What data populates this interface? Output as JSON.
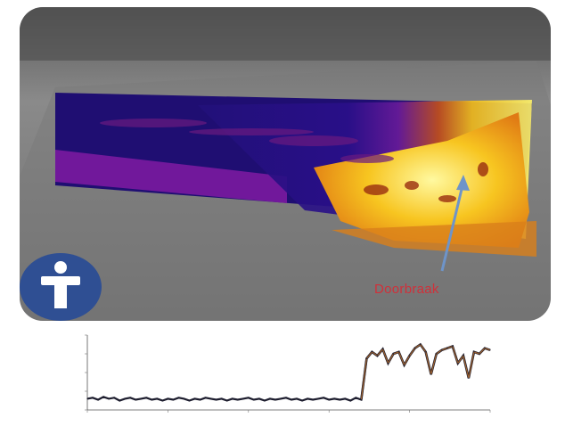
{
  "photo": {
    "annotation": "Doorbraak",
    "annotation_color": "#d0303a",
    "arrow_color": "#6e94c9",
    "info_badge_color": "#2f4f93",
    "info_icon": "info-person-icon",
    "palette": {
      "background_gray": "#8e8e8e",
      "cold": "#1e0f7c",
      "warm_purple": "#8a1fa6",
      "hot": "#f9c51b",
      "hottest": "#fffa64"
    }
  },
  "chart_data": {
    "type": "line",
    "title": "",
    "xlabel": "",
    "ylabel": "",
    "line_color": "#1d1d2e",
    "highlight_color": "#b56f2f",
    "x": [
      0,
      20,
      40,
      60,
      80,
      100,
      120,
      140,
      160,
      180,
      200,
      220,
      240,
      260,
      280,
      300,
      320,
      340,
      360,
      380,
      400,
      420,
      440,
      460,
      480,
      500,
      520,
      540,
      560,
      580,
      600,
      620,
      640,
      660,
      680,
      700,
      720,
      740,
      760,
      780,
      800,
      820,
      840,
      860,
      880,
      900,
      920,
      940,
      960,
      980,
      1000,
      1020,
      1040,
      1060,
      1080,
      1100,
      1120,
      1140,
      1160,
      1180,
      1200,
      1220,
      1240,
      1260,
      1280,
      1300,
      1320,
      1340,
      1360,
      1380,
      1400,
      1420,
      1440,
      1460,
      1480,
      1500
    ],
    "values": [
      12,
      13,
      11,
      14,
      12,
      13,
      10,
      12,
      13,
      11,
      12,
      13,
      11,
      12,
      10,
      12,
      11,
      13,
      12,
      10,
      12,
      11,
      13,
      12,
      11,
      12,
      10,
      12,
      11,
      12,
      13,
      11,
      12,
      10,
      12,
      11,
      12,
      13,
      11,
      12,
      10,
      12,
      11,
      12,
      13,
      11,
      12,
      11,
      12,
      10,
      13,
      11,
      55,
      62,
      58,
      65,
      50,
      60,
      62,
      48,
      58,
      66,
      70,
      62,
      38,
      60,
      64,
      66,
      68,
      50,
      58,
      34,
      62,
      60,
      66,
      64
    ],
    "xlim": [
      0,
      1500
    ],
    "ylim": [
      0,
      80
    ],
    "grid": false,
    "tick_labels_x": [],
    "tick_labels_y": []
  }
}
